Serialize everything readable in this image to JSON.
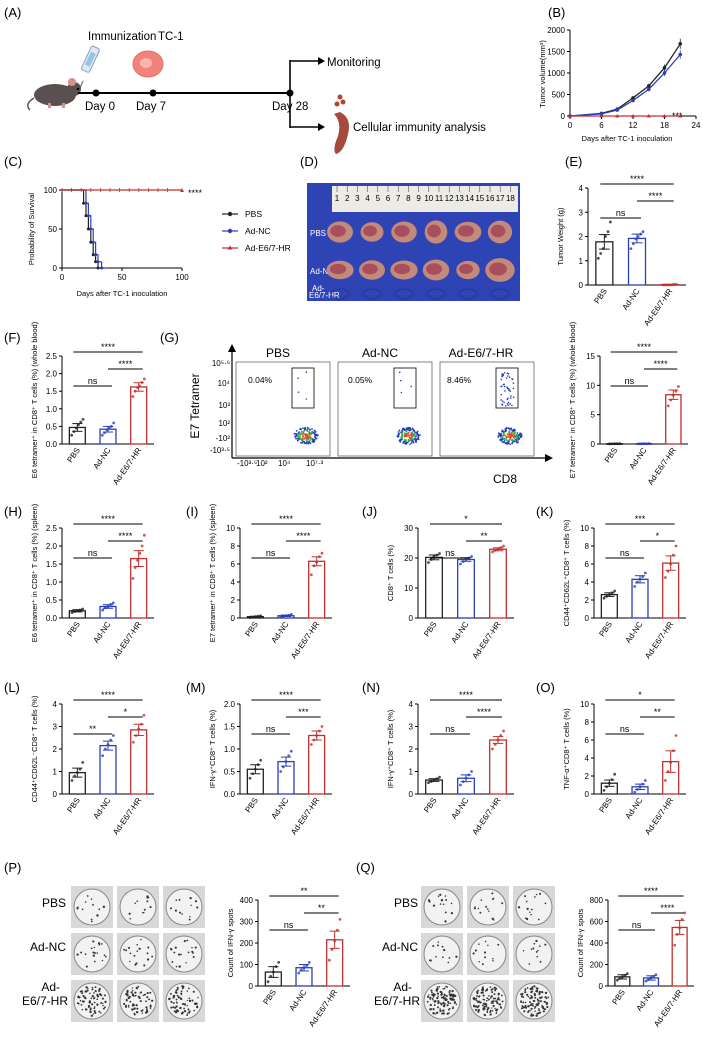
{
  "panel_labels": {
    "A": "(A)",
    "B": "(B)",
    "C": "(C)",
    "D": "(D)",
    "E": "(E)",
    "F": "(F)",
    "G": "(G)",
    "H": "(H)",
    "I": "(I)",
    "J": "(J)",
    "K": "(K)",
    "L": "(L)",
    "M": "(M)",
    "N": "(N)",
    "O": "(O)",
    "P": "(P)",
    "Q": "(Q)"
  },
  "schema": {
    "immunization": "Immunization",
    "tc1": "TC-1",
    "day0": "Day 0",
    "day7": "Day 7",
    "day28": "Day 28",
    "monitoring": "Monitoring",
    "cellular": "Cellular immunity analysis"
  },
  "colors": {
    "pbs": "#222222",
    "adnc": "#2a3fb8",
    "ad": "#c0302c",
    "dish_bg": "#2f44b4"
  },
  "photo": {
    "ruler_numbers": [
      "1",
      "2",
      "3",
      "4",
      "5",
      "6",
      "7",
      "8",
      "9",
      "10",
      "11",
      "12",
      "13",
      "14",
      "15",
      "16",
      "17",
      "18"
    ],
    "row_labels": [
      "PBS",
      "Ad-NC",
      "Ad-",
      "E6/7-HR"
    ]
  },
  "flow": {
    "groups": [
      "PBS",
      "Ad-NC",
      "Ad-E6/7-HR"
    ],
    "percents": [
      "0.04%",
      "0.05%",
      "8.46%"
    ],
    "y_label": "E7 Tetramer",
    "x_label": "CD8",
    "y_ticks": [
      "10⁵·⁶",
      "10⁴",
      "10³",
      "10²",
      "-10²",
      "-10³·⁵"
    ],
    "x_ticks": [
      "-10³·⁵",
      "10²",
      "10⁴",
      "10⁷·³"
    ]
  },
  "elispot": {
    "P_rows": [
      "PBS",
      "Ad-NC",
      "Ad-",
      "E6/7-HR"
    ],
    "Q_rows": [
      "PBS",
      "Ad-NC",
      "Ad-",
      "E6/7-HR"
    ]
  },
  "chart_data": [
    {
      "id": "B",
      "type": "line",
      "x": [
        0,
        6,
        9,
        12,
        15,
        18,
        21
      ],
      "series": [
        {
          "name": "PBS",
          "values": [
            0,
            60,
            160,
            420,
            700,
            1120,
            1680
          ]
        },
        {
          "name": "Ad-NC",
          "values": [
            0,
            50,
            140,
            360,
            620,
            1000,
            1430
          ]
        },
        {
          "name": "Ad-E6/7-HR",
          "values": [
            0,
            0,
            0,
            0,
            0,
            0,
            0
          ]
        }
      ],
      "xlabel": "Days after TC-1 inoculation",
      "ylabel": "Tumor volume(mm³)",
      "xlim": [
        0,
        24
      ],
      "ylim": [
        0,
        2000
      ],
      "xticks": [
        "0",
        "6",
        "12",
        "18",
        "24"
      ],
      "yticks": [
        "0",
        "500",
        "1000",
        "1500",
        "2000"
      ],
      "annotations": [
        "***"
      ]
    },
    {
      "id": "C",
      "type": "line",
      "subtype": "survival",
      "series": [
        {
          "name": "PBS",
          "x": [
            0,
            18,
            20,
            22,
            24,
            26,
            28,
            30,
            35
          ],
          "values": [
            100,
            83,
            67,
            50,
            33,
            17,
            8,
            0,
            0
          ]
        },
        {
          "name": "Ad-NC",
          "x": [
            0,
            20,
            22,
            24,
            26,
            28,
            30,
            33,
            38
          ],
          "values": [
            100,
            83,
            67,
            50,
            33,
            17,
            8,
            0,
            0
          ]
        },
        {
          "name": "Ad-E6/7-HR",
          "x": [
            0,
            100
          ],
          "values": [
            100,
            100
          ]
        }
      ],
      "xlabel": "Days after TC-1 inoculation",
      "ylabel": "Probability of Survival",
      "xlim": [
        0,
        100
      ],
      "ylim": [
        0,
        100
      ],
      "xticks": [
        "0",
        "50",
        "100"
      ],
      "yticks": [
        "0",
        "50",
        "100"
      ],
      "legend": [
        "PBS",
        "Ad-NC",
        "Ad-E6/7-HR"
      ],
      "annotations": [
        "****"
      ]
    },
    {
      "id": "E",
      "type": "bar",
      "categories": [
        "PBS",
        "Ad-NC",
        "Ad-E6/7-HR"
      ],
      "values": [
        1.78,
        1.92,
        0.02
      ],
      "errors": [
        0.3,
        0.18,
        0.01
      ],
      "points": [
        [
          1.1,
          1.3,
          1.5,
          2.0,
          2.2,
          2.6
        ],
        [
          1.5,
          1.7,
          1.9,
          2.0,
          2.1,
          2.2
        ],
        [
          0,
          0,
          0,
          0,
          0.02,
          0.03
        ]
      ],
      "ylabel": "Tumor Weight (g)",
      "ylim": [
        0,
        4
      ],
      "yticks": [
        "0",
        "1",
        "2",
        "3",
        "4"
      ],
      "sig": [
        {
          "a": 0,
          "b": 2,
          "label": "****"
        },
        {
          "a": 0,
          "b": 1,
          "label": "ns"
        },
        {
          "a": 1,
          "b": 2,
          "label": "****"
        }
      ]
    },
    {
      "id": "F",
      "type": "bar",
      "categories": [
        "PBS",
        "Ad-NC",
        "Ad-E6/7-HR"
      ],
      "values": [
        0.47,
        0.42,
        1.62
      ],
      "errors": [
        0.11,
        0.08,
        0.12
      ],
      "points": [
        [
          0.25,
          0.35,
          0.45,
          0.55,
          0.62,
          0.7
        ],
        [
          0.25,
          0.32,
          0.4,
          0.45,
          0.5,
          0.6
        ],
        [
          1.35,
          1.5,
          1.6,
          1.65,
          1.75,
          1.85
        ]
      ],
      "ylabel": "E6 tetramer⁺ in CD8⁺ T cells (%) (whole blood)",
      "ylim": [
        0,
        2.5
      ],
      "yticks": [
        "0.0",
        "0.5",
        "1.0",
        "1.5",
        "2.0",
        "2.5"
      ],
      "sig": [
        {
          "a": 0,
          "b": 2,
          "label": "****"
        },
        {
          "a": 0,
          "b": 1,
          "label": "ns"
        },
        {
          "a": 1,
          "b": 2,
          "label": "****"
        }
      ]
    },
    {
      "id": "G",
      "type": "bar",
      "categories": [
        "PBS",
        "Ad-NC",
        "Ad-E6/7-HR"
      ],
      "values": [
        0.05,
        0.06,
        8.4
      ],
      "errors": [
        0.02,
        0.02,
        0.8
      ],
      "points": [
        [
          0.03,
          0.04,
          0.05,
          0.06,
          0.07
        ],
        [
          0.04,
          0.05,
          0.06,
          0.07,
          0.08
        ],
        [
          6.5,
          7.5,
          8.3,
          9.0,
          9.8
        ]
      ],
      "ylabel": "E7 tetramer⁺ in CD8⁺ T cells (%) (whole blood)",
      "ylim": [
        0,
        15
      ],
      "yticks": [
        "0",
        "5",
        "10",
        "15"
      ],
      "sig": [
        {
          "a": 0,
          "b": 2,
          "label": "****"
        },
        {
          "a": 0,
          "b": 1,
          "label": "ns"
        },
        {
          "a": 1,
          "b": 2,
          "label": "****"
        }
      ]
    },
    {
      "id": "H",
      "type": "bar",
      "categories": [
        "PBS",
        "Ad-NC",
        "Ad-E6/7-HR"
      ],
      "values": [
        0.2,
        0.32,
        1.65
      ],
      "errors": [
        0.03,
        0.05,
        0.22
      ],
      "points": [
        [
          0.15,
          0.18,
          0.2,
          0.22,
          0.25
        ],
        [
          0.22,
          0.28,
          0.32,
          0.38,
          0.42
        ],
        [
          1.1,
          1.4,
          1.6,
          1.8,
          2.0,
          2.3
        ]
      ],
      "ylabel": "E6 tetramer⁺ in CD8⁺ T cells (%) (spleen)",
      "ylim": [
        0,
        2.5
      ],
      "yticks": [
        "0.0",
        "0.5",
        "1.0",
        "1.5",
        "2.0",
        "2.5"
      ],
      "sig": [
        {
          "a": 0,
          "b": 2,
          "label": "****"
        },
        {
          "a": 0,
          "b": 1,
          "label": "ns"
        },
        {
          "a": 1,
          "b": 2,
          "label": "****"
        }
      ]
    },
    {
      "id": "I",
      "type": "bar",
      "categories": [
        "PBS",
        "Ad-NC",
        "Ad-E6/7-HR"
      ],
      "values": [
        0.15,
        0.25,
        6.3
      ],
      "errors": [
        0.05,
        0.08,
        0.5
      ],
      "points": [
        [
          0.05,
          0.1,
          0.15,
          0.2,
          0.25
        ],
        [
          0.1,
          0.2,
          0.25,
          0.3,
          0.4
        ],
        [
          4.8,
          5.8,
          6.2,
          6.8,
          7.2
        ]
      ],
      "ylabel": "E7 tetramer⁺ in CD8⁺ T cells (%) (spleen)",
      "ylim": [
        0,
        10
      ],
      "yticks": [
        "0",
        "2",
        "4",
        "6",
        "8",
        "10"
      ],
      "sig": [
        {
          "a": 0,
          "b": 2,
          "label": "****"
        },
        {
          "a": 0,
          "b": 1,
          "label": "ns"
        },
        {
          "a": 1,
          "b": 2,
          "label": "****"
        }
      ]
    },
    {
      "id": "J",
      "type": "bar",
      "categories": [
        "PBS",
        "Ad-NC",
        "Ad-E6/7-HR"
      ],
      "values": [
        20.2,
        19.5,
        22.9
      ],
      "errors": [
        0.8,
        0.6,
        0.5
      ],
      "points": [
        [
          18.5,
          19.5,
          20.5,
          21.0,
          21.5
        ],
        [
          18.0,
          18.8,
          19.5,
          20.0,
          20.5
        ],
        [
          22.0,
          22.5,
          23.0,
          23.5,
          24.0
        ]
      ],
      "ylabel": "CD8⁺ T cells (%)",
      "ylim": [
        0,
        30
      ],
      "yticks": [
        "0",
        "10",
        "20",
        "30"
      ],
      "sig": [
        {
          "a": 0,
          "b": 2,
          "label": "*"
        },
        {
          "a": 0,
          "b": 1,
          "label": "ns"
        },
        {
          "a": 1,
          "b": 2,
          "label": "**"
        }
      ]
    },
    {
      "id": "K",
      "type": "bar",
      "categories": [
        "PBS",
        "Ad-NC",
        "Ad-E6/7-HR"
      ],
      "values": [
        2.6,
        4.3,
        6.1
      ],
      "errors": [
        0.2,
        0.4,
        0.8
      ],
      "points": [
        [
          2.2,
          2.4,
          2.6,
          2.8,
          3.0
        ],
        [
          3.5,
          4.0,
          4.3,
          4.6,
          5.0
        ],
        [
          4.5,
          5.2,
          6.0,
          7.0,
          8.0
        ]
      ],
      "ylabel": "CD44⁺CD62L⁺CD8⁺ T cells (%)",
      "ylim": [
        0,
        10
      ],
      "yticks": [
        "0",
        "2",
        "4",
        "6",
        "8",
        "10"
      ],
      "sig": [
        {
          "a": 0,
          "b": 2,
          "label": "***"
        },
        {
          "a": 0,
          "b": 1,
          "label": "ns"
        },
        {
          "a": 1,
          "b": 2,
          "label": "*"
        }
      ]
    },
    {
      "id": "L",
      "type": "bar",
      "categories": [
        "PBS",
        "Ad-NC",
        "Ad-E6/7-HR"
      ],
      "values": [
        0.95,
        2.15,
        2.85
      ],
      "errors": [
        0.2,
        0.2,
        0.25
      ],
      "points": [
        [
          0.6,
          0.8,
          0.95,
          1.1,
          1.4
        ],
        [
          1.7,
          2.0,
          2.2,
          2.4,
          2.6
        ],
        [
          2.3,
          2.6,
          2.9,
          3.1,
          3.5
        ]
      ],
      "ylabel": "CD44⁺CD62L⁻CD8⁺ T cells (%)",
      "ylim": [
        0,
        4
      ],
      "yticks": [
        "0",
        "1",
        "2",
        "3",
        "4"
      ],
      "sig": [
        {
          "a": 0,
          "b": 2,
          "label": "****"
        },
        {
          "a": 0,
          "b": 1,
          "label": "**"
        },
        {
          "a": 1,
          "b": 2,
          "label": "*"
        }
      ]
    },
    {
      "id": "M",
      "type": "bar",
      "categories": [
        "PBS",
        "Ad-NC",
        "Ad-E6/7-HR"
      ],
      "values": [
        0.55,
        0.72,
        1.3
      ],
      "errors": [
        0.1,
        0.1,
        0.1
      ],
      "points": [
        [
          0.35,
          0.45,
          0.55,
          0.65,
          0.75
        ],
        [
          0.5,
          0.6,
          0.72,
          0.85,
          0.95
        ],
        [
          1.1,
          1.2,
          1.3,
          1.4,
          1.5
        ]
      ],
      "ylabel": "IFN-γ⁺CD8⁺ T cells (%)",
      "ylim": [
        0,
        2.0
      ],
      "yticks": [
        "0.0",
        "0.5",
        "1.0",
        "1.5",
        "2.0"
      ],
      "sig": [
        {
          "a": 0,
          "b": 2,
          "label": "****"
        },
        {
          "a": 0,
          "b": 1,
          "label": "ns"
        },
        {
          "a": 1,
          "b": 2,
          "label": "***"
        }
      ]
    },
    {
      "id": "N",
      "type": "bar",
      "categories": [
        "PBS",
        "Ad-NC",
        "Ad-E6/7-HR"
      ],
      "values": [
        0.62,
        0.7,
        2.4
      ],
      "errors": [
        0.06,
        0.15,
        0.15
      ],
      "points": [
        [
          0.5,
          0.55,
          0.62,
          0.68,
          0.75
        ],
        [
          0.4,
          0.55,
          0.7,
          0.85,
          1.0
        ],
        [
          2.0,
          2.2,
          2.4,
          2.6,
          2.8
        ]
      ],
      "ylabel": "IFN-γ⁺CD8⁺ T cells (%)",
      "ylim": [
        0,
        4
      ],
      "yticks": [
        "0",
        "1",
        "2",
        "3",
        "4"
      ],
      "sig": [
        {
          "a": 0,
          "b": 2,
          "label": "****"
        },
        {
          "a": 0,
          "b": 1,
          "label": "ns"
        },
        {
          "a": 1,
          "b": 2,
          "label": "****"
        }
      ]
    },
    {
      "id": "O",
      "type": "bar",
      "categories": [
        "PBS",
        "Ad-NC",
        "Ad-E6/7-HR"
      ],
      "values": [
        1.2,
        0.8,
        3.6
      ],
      "errors": [
        0.35,
        0.3,
        1.2
      ],
      "points": [
        [
          0.4,
          0.8,
          1.2,
          1.6,
          2.2
        ],
        [
          0.2,
          0.5,
          0.8,
          1.1,
          1.5
        ],
        [
          1.5,
          2.5,
          3.5,
          4.8,
          6.5
        ]
      ],
      "ylabel": "TNF-α⁺CD8⁺ T cells (%)",
      "ylim": [
        0,
        10
      ],
      "yticks": [
        "0",
        "2",
        "4",
        "6",
        "8",
        "10"
      ],
      "sig": [
        {
          "a": 0,
          "b": 2,
          "label": "*"
        },
        {
          "a": 0,
          "b": 1,
          "label": "ns"
        },
        {
          "a": 1,
          "b": 2,
          "label": "**"
        }
      ]
    },
    {
      "id": "P",
      "type": "bar",
      "categories": [
        "PBS",
        "Ad-NC",
        "Ad-E6/7-HR"
      ],
      "values": [
        65,
        85,
        215
      ],
      "errors": [
        25,
        15,
        40
      ],
      "points": [
        [
          20,
          45,
          65,
          90,
          110
        ],
        [
          60,
          75,
          85,
          95,
          110
        ],
        [
          120,
          170,
          210,
          260,
          310
        ]
      ],
      "ylabel": "Count of IFN-γ spots",
      "ylim": [
        0,
        400
      ],
      "yticks": [
        "0",
        "100",
        "200",
        "300",
        "400"
      ],
      "sig": [
        {
          "a": 0,
          "b": 2,
          "label": "**"
        },
        {
          "a": 0,
          "b": 1,
          "label": "ns"
        },
        {
          "a": 1,
          "b": 2,
          "label": "**"
        }
      ]
    },
    {
      "id": "Q",
      "type": "bar",
      "categories": [
        "PBS",
        "Ad-NC",
        "Ad-E6/7-HR"
      ],
      "values": [
        85,
        75,
        545
      ],
      "errors": [
        20,
        20,
        65
      ],
      "points": [
        [
          55,
          70,
          85,
          100,
          115
        ],
        [
          45,
          60,
          75,
          90,
          105
        ],
        [
          380,
          480,
          540,
          620,
          680
        ]
      ],
      "ylabel": "Count of IFN-γ spots",
      "ylim": [
        0,
        800
      ],
      "yticks": [
        "0",
        "200",
        "400",
        "600",
        "800"
      ],
      "sig": [
        {
          "a": 0,
          "b": 2,
          "label": "****"
        },
        {
          "a": 0,
          "b": 1,
          "label": "ns"
        },
        {
          "a": 1,
          "b": 2,
          "label": "****"
        }
      ]
    }
  ]
}
